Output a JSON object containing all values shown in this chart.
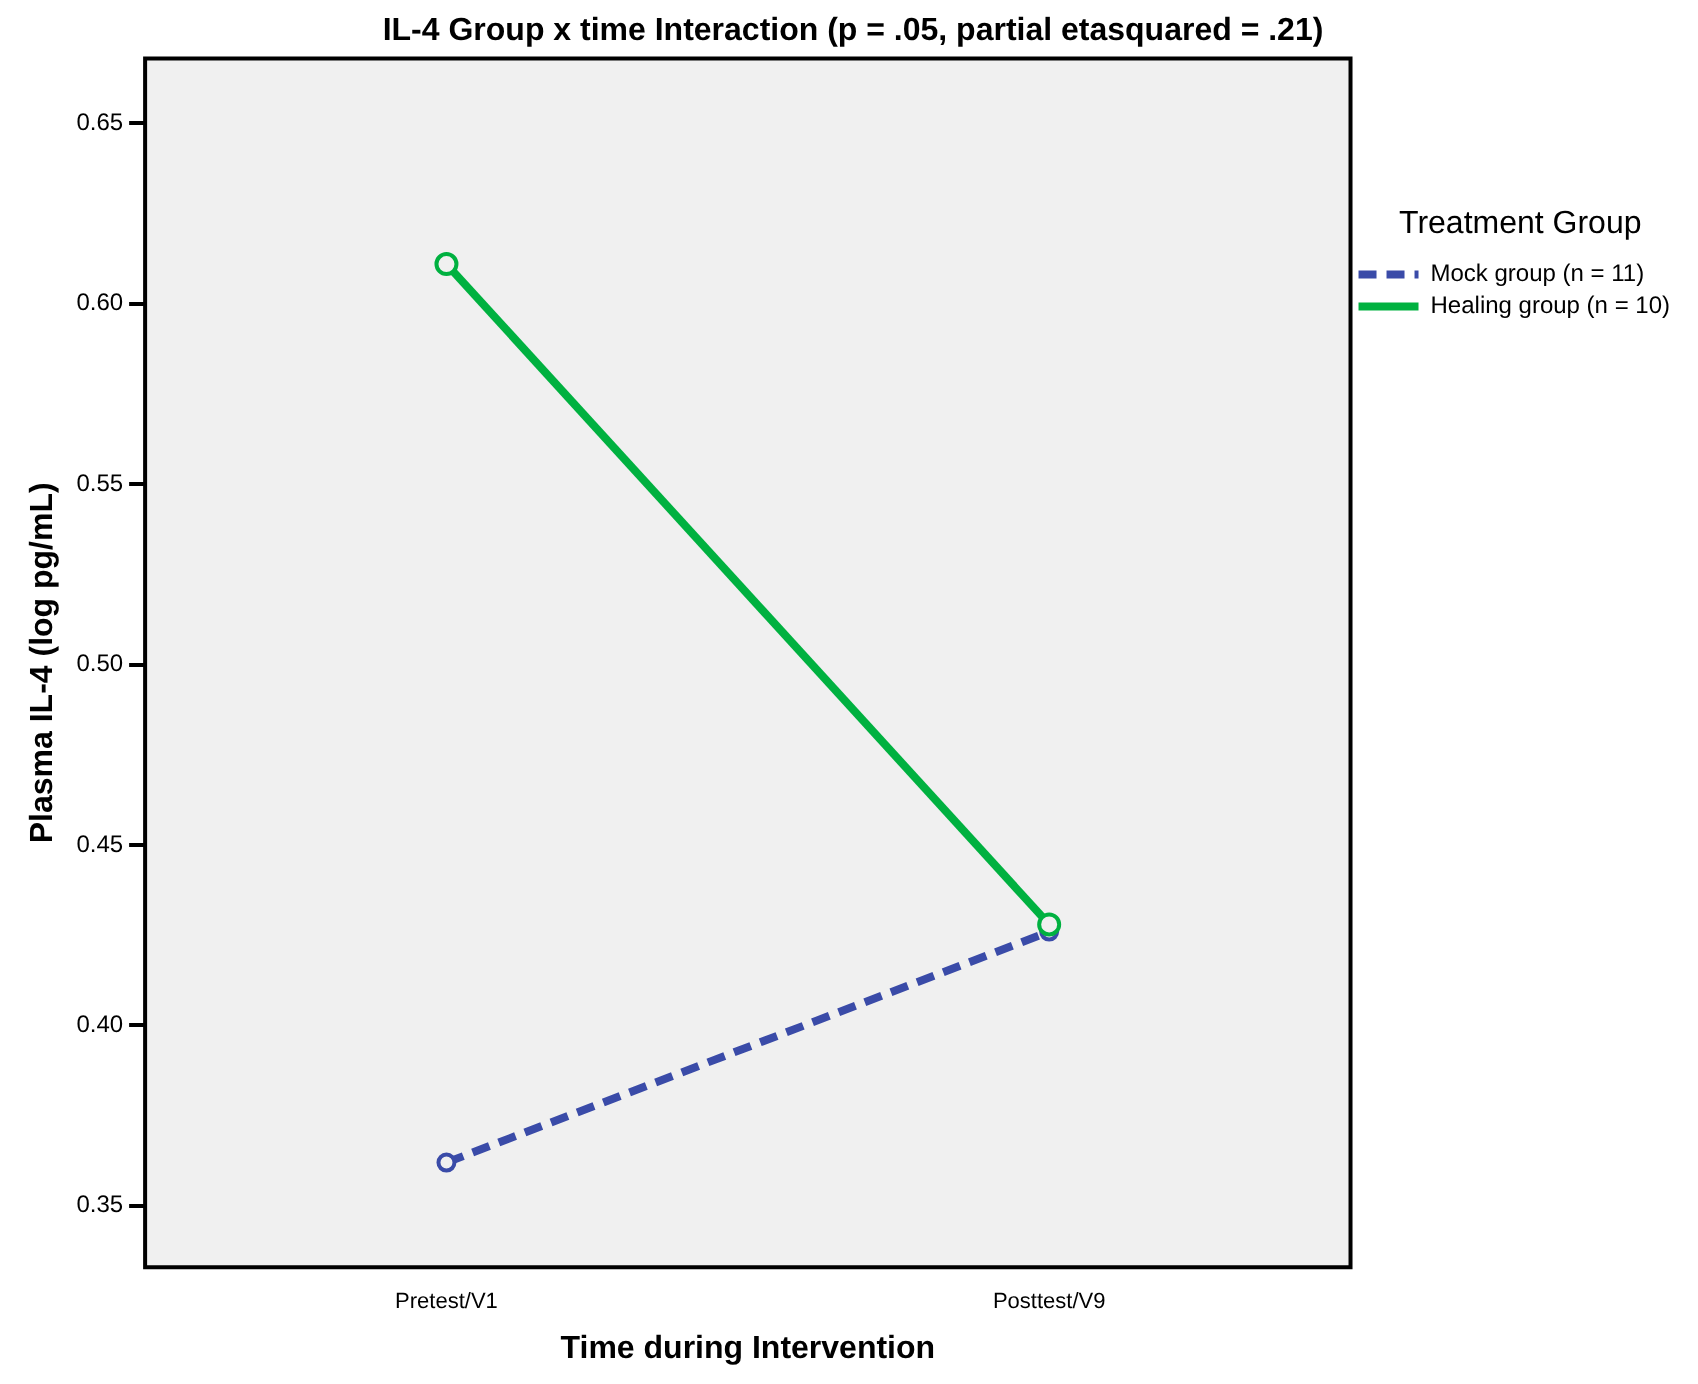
{
  "chart_data": {
    "type": "line",
    "title": "IL-4 Group x time Interaction (p = .05, partial etasquared = .21)",
    "xlabel": "Time during Intervention",
    "ylabel": "Plasma IL-4 (log pg/mL)",
    "legend_title": "Treatment Group",
    "categories": [
      "Pretest/V1",
      "Posttest/V9"
    ],
    "series": [
      {
        "name": "Mock group (n = 11)",
        "color": "#3a4ba8",
        "values": [
          0.362,
          0.426
        ],
        "line_style": "dashed"
      },
      {
        "name": "Healing group (n = 10)",
        "color": "#00b140",
        "values": [
          0.611,
          0.428
        ],
        "line_style": "solid"
      }
    ],
    "ylim": [
      0.333,
      0.668
    ],
    "yticks": [
      {
        "value": 0.35,
        "label": "0.35"
      },
      {
        "value": 0.4,
        "label": "0.40"
      },
      {
        "value": 0.45,
        "label": "0.45"
      },
      {
        "value": 0.5,
        "label": "0.50"
      },
      {
        "value": 0.55,
        "label": "0.55"
      },
      {
        "value": 0.6,
        "label": "0.60"
      },
      {
        "value": 0.65,
        "label": "0.65"
      }
    ],
    "legend": "right",
    "marker": "circle",
    "grid": false
  }
}
